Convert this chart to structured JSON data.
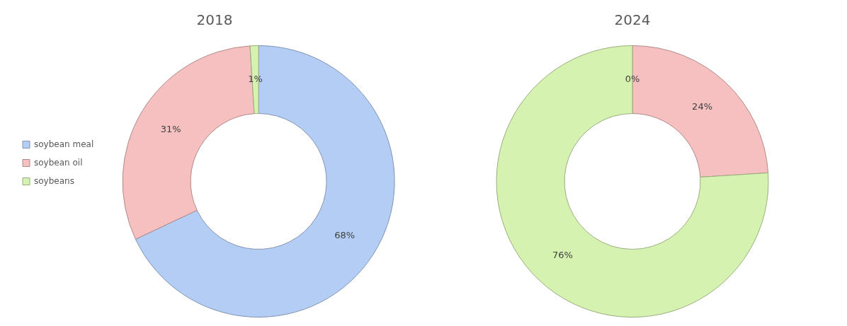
{
  "chart_data": [
    {
      "type": "donut",
      "title": "2018",
      "categories": [
        "soybean meal",
        "soybean oil",
        "soybeans"
      ],
      "values": [
        68,
        31,
        1
      ],
      "colors": [
        "#b4cdf4",
        "#f6c0c0",
        "#d6f2b0"
      ],
      "value_labels": [
        "68%",
        "31%",
        "1%"
      ],
      "legend": "left"
    },
    {
      "type": "donut",
      "title": "2024",
      "categories": [
        null,
        null,
        null
      ],
      "values": [
        0,
        24,
        76
      ],
      "colors": [
        "#b4cdf4",
        "#f6c0c0",
        "#d6f2b0"
      ],
      "value_labels": [
        "0%",
        "24%",
        "76%"
      ]
    }
  ]
}
